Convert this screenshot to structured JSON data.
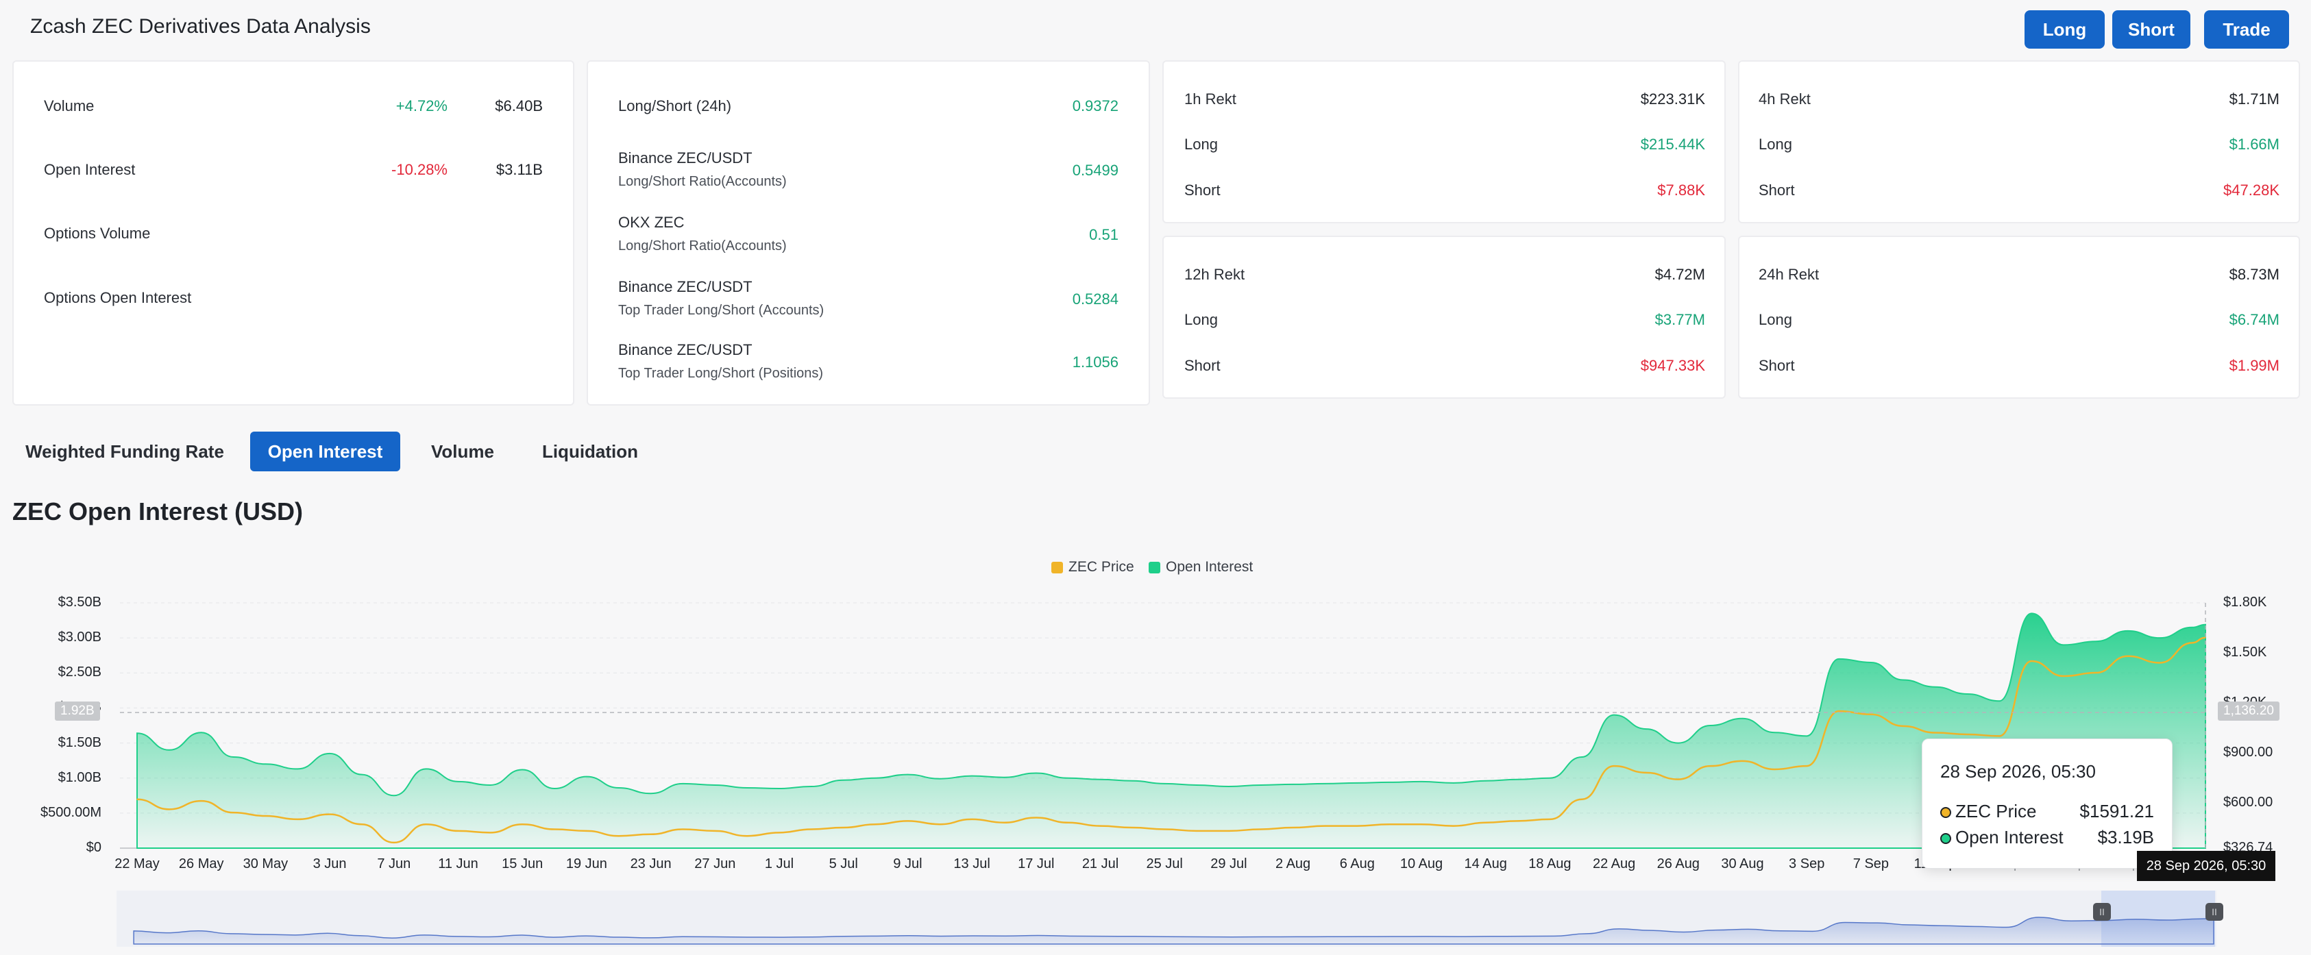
{
  "header": {
    "title": "Zcash ZEC Derivatives Data Analysis",
    "buttons": {
      "long": "Long",
      "short": "Short",
      "trade": "Trade"
    }
  },
  "overview": {
    "volume": {
      "label": "Volume",
      "change": "+4.72%",
      "value": "$6.40B"
    },
    "open_interest": {
      "label": "Open Interest",
      "change": "-10.28%",
      "value": "$3.11B"
    },
    "options_volume": {
      "label": "Options Volume"
    },
    "options_open_interest": {
      "label": "Options Open Interest"
    }
  },
  "ratios": [
    {
      "title": "Long/Short (24h)",
      "subtitle": "",
      "value": "0.9372"
    },
    {
      "title": "Binance ZEC/USDT",
      "subtitle": "Long/Short Ratio(Accounts)",
      "value": "0.5499"
    },
    {
      "title": "OKX ZEC",
      "subtitle": "Long/Short Ratio(Accounts)",
      "value": "0.51"
    },
    {
      "title": "Binance ZEC/USDT",
      "subtitle": "Top Trader Long/Short (Accounts)",
      "value": "0.5284"
    },
    {
      "title": "Binance ZEC/USDT",
      "subtitle": "Top Trader Long/Short (Positions)",
      "value": "1.1056"
    }
  ],
  "rekt": {
    "h1": {
      "title": "1h Rekt",
      "total": "$223.31K",
      "long_label": "Long",
      "long": "$215.44K",
      "short_label": "Short",
      "short": "$7.88K"
    },
    "h4": {
      "title": "4h Rekt",
      "total": "$1.71M",
      "long_label": "Long",
      "long": "$1.66M",
      "short_label": "Short",
      "short": "$47.28K"
    },
    "h12": {
      "title": "12h Rekt",
      "total": "$4.72M",
      "long_label": "Long",
      "long": "$3.77M",
      "short_label": "Short",
      "short": "$947.33K"
    },
    "h24": {
      "title": "24h Rekt",
      "total": "$8.73M",
      "long_label": "Long",
      "long": "$6.74M",
      "short_label": "Short",
      "short": "$1.99M"
    }
  },
  "tabs": [
    {
      "label": "Weighted Funding Rate",
      "active": false
    },
    {
      "label": "Open Interest",
      "active": true
    },
    {
      "label": "Volume",
      "active": false
    },
    {
      "label": "Liquidation",
      "active": false
    }
  ],
  "section_title": "ZEC Open Interest (USD)",
  "colors": {
    "accent": "#1565c8",
    "price": "#f0b429",
    "open_interest": "#1fcf8a",
    "positive": "#17a377",
    "negative": "#e2283a"
  },
  "tooltip": {
    "date": "28 Sep 2026, 05:30",
    "price_label": "ZEC Price",
    "price_value": "$1591.21",
    "oi_label": "Open Interest",
    "oi_value": "$3.19B"
  },
  "crosshair": {
    "left_value": "1.92B",
    "right_value": "1,136.20",
    "date": "28 Sep 2026, 05:30"
  },
  "chart_data": {
    "type": "area",
    "title": "",
    "legend": [
      "ZEC Price",
      "Open Interest"
    ],
    "legend_position": "top-center",
    "grid": true,
    "x_ticks": [
      "22 May",
      "26 May",
      "30 May",
      "3 Jun",
      "7 Jun",
      "11 Jun",
      "15 Jun",
      "19 Jun",
      "23 Jun",
      "27 Jun",
      "1 Jul",
      "5 Jul",
      "9 Jul",
      "13 Jul",
      "17 Jul",
      "21 Jul",
      "25 Jul",
      "29 Jul",
      "2 Aug",
      "6 Aug",
      "10 Aug",
      "14 Aug",
      "18 Aug",
      "22 Aug",
      "26 Aug",
      "30 Aug",
      "3 Sep",
      "7 Sep",
      "11 Sep",
      "15 Sep",
      "19 Sep",
      "23 Sep",
      "28 Sep"
    ],
    "y_left_ticks": [
      "$0",
      "$500.00M",
      "$1.00B",
      "$1.50B",
      "$2.00B",
      "$2.50B",
      "$3.00B",
      "$3.50B"
    ],
    "y_left_range": [
      0,
      3500000000
    ],
    "y_right_ticks": [
      "$326.74",
      "$600.00",
      "$900.00",
      "$1.20K",
      "$1.50K",
      "$1.80K"
    ],
    "y_right_range": [
      326.74,
      1800
    ],
    "series": [
      {
        "name": "Open Interest",
        "axis": "left",
        "unit": "USD",
        "x": [
          "22 May",
          "24 May",
          "26 May",
          "28 May",
          "30 May",
          "1 Jun",
          "3 Jun",
          "5 Jun",
          "7 Jun",
          "9 Jun",
          "11 Jun",
          "13 Jun",
          "15 Jun",
          "17 Jun",
          "19 Jun",
          "21 Jun",
          "23 Jun",
          "25 Jun",
          "27 Jun",
          "29 Jun",
          "1 Jul",
          "3 Jul",
          "5 Jul",
          "7 Jul",
          "9 Jul",
          "11 Jul",
          "13 Jul",
          "15 Jul",
          "17 Jul",
          "19 Jul",
          "21 Jul",
          "23 Jul",
          "25 Jul",
          "27 Jul",
          "29 Jul",
          "31 Jul",
          "2 Aug",
          "4 Aug",
          "6 Aug",
          "8 Aug",
          "10 Aug",
          "12 Aug",
          "14 Aug",
          "16 Aug",
          "18 Aug",
          "20 Aug",
          "22 Aug",
          "24 Aug",
          "26 Aug",
          "28 Aug",
          "30 Aug",
          "1 Sep",
          "3 Sep",
          "5 Sep",
          "7 Sep",
          "9 Sep",
          "11 Sep",
          "13 Sep",
          "15 Sep",
          "17 Sep",
          "19 Sep",
          "21 Sep",
          "23 Sep",
          "25 Sep",
          "27 Sep",
          "28 Sep"
        ],
        "values": [
          1640000000,
          1400000000,
          1650000000,
          1300000000,
          1200000000,
          1130000000,
          1350000000,
          1050000000,
          750000000,
          1130000000,
          950000000,
          900000000,
          1120000000,
          850000000,
          1020000000,
          860000000,
          780000000,
          920000000,
          900000000,
          860000000,
          850000000,
          880000000,
          970000000,
          1000000000,
          1050000000,
          990000000,
          1030000000,
          1010000000,
          1070000000,
          1000000000,
          980000000,
          960000000,
          920000000,
          900000000,
          880000000,
          900000000,
          910000000,
          920000000,
          930000000,
          940000000,
          950000000,
          930000000,
          960000000,
          980000000,
          1000000000,
          1300000000,
          1900000000,
          1700000000,
          1500000000,
          1750000000,
          1850000000,
          1650000000,
          1600000000,
          2700000000,
          2650000000,
          2400000000,
          2300000000,
          2200000000,
          2100000000,
          3350000000,
          2900000000,
          2950000000,
          3100000000,
          3000000000,
          3150000000,
          3190000000
        ]
      },
      {
        "name": "ZEC Price",
        "axis": "right",
        "unit": "USD",
        "x": [
          "22 May",
          "24 May",
          "26 May",
          "28 May",
          "30 May",
          "1 Jun",
          "3 Jun",
          "5 Jun",
          "7 Jun",
          "9 Jun",
          "11 Jun",
          "13 Jun",
          "15 Jun",
          "17 Jun",
          "19 Jun",
          "21 Jun",
          "23 Jun",
          "25 Jun",
          "27 Jun",
          "29 Jun",
          "1 Jul",
          "3 Jul",
          "5 Jul",
          "7 Jul",
          "9 Jul",
          "11 Jul",
          "13 Jul",
          "15 Jul",
          "17 Jul",
          "19 Jul",
          "21 Jul",
          "23 Jul",
          "25 Jul",
          "27 Jul",
          "29 Jul",
          "31 Jul",
          "2 Aug",
          "4 Aug",
          "6 Aug",
          "8 Aug",
          "10 Aug",
          "12 Aug",
          "14 Aug",
          "16 Aug",
          "18 Aug",
          "20 Aug",
          "22 Aug",
          "24 Aug",
          "26 Aug",
          "28 Aug",
          "30 Aug",
          "1 Sep",
          "3 Sep",
          "5 Sep",
          "7 Sep",
          "9 Sep",
          "11 Sep",
          "13 Sep",
          "15 Sep",
          "17 Sep",
          "19 Sep",
          "21 Sep",
          "23 Sep",
          "25 Sep",
          "27 Sep",
          "28 Sep"
        ],
        "values": [
          620,
          560,
          610,
          540,
          520,
          500,
          530,
          470,
          360,
          470,
          430,
          420,
          470,
          440,
          430,
          400,
          410,
          440,
          430,
          400,
          420,
          440,
          450,
          470,
          490,
          470,
          500,
          480,
          510,
          480,
          460,
          450,
          440,
          430,
          430,
          440,
          450,
          460,
          460,
          470,
          470,
          460,
          480,
          490,
          500,
          620,
          820,
          780,
          740,
          820,
          850,
          800,
          820,
          1150,
          1130,
          1060,
          1020,
          1010,
          1000,
          1450,
          1360,
          1380,
          1480,
          1440,
          1560,
          1591.21
        ]
      }
    ]
  }
}
